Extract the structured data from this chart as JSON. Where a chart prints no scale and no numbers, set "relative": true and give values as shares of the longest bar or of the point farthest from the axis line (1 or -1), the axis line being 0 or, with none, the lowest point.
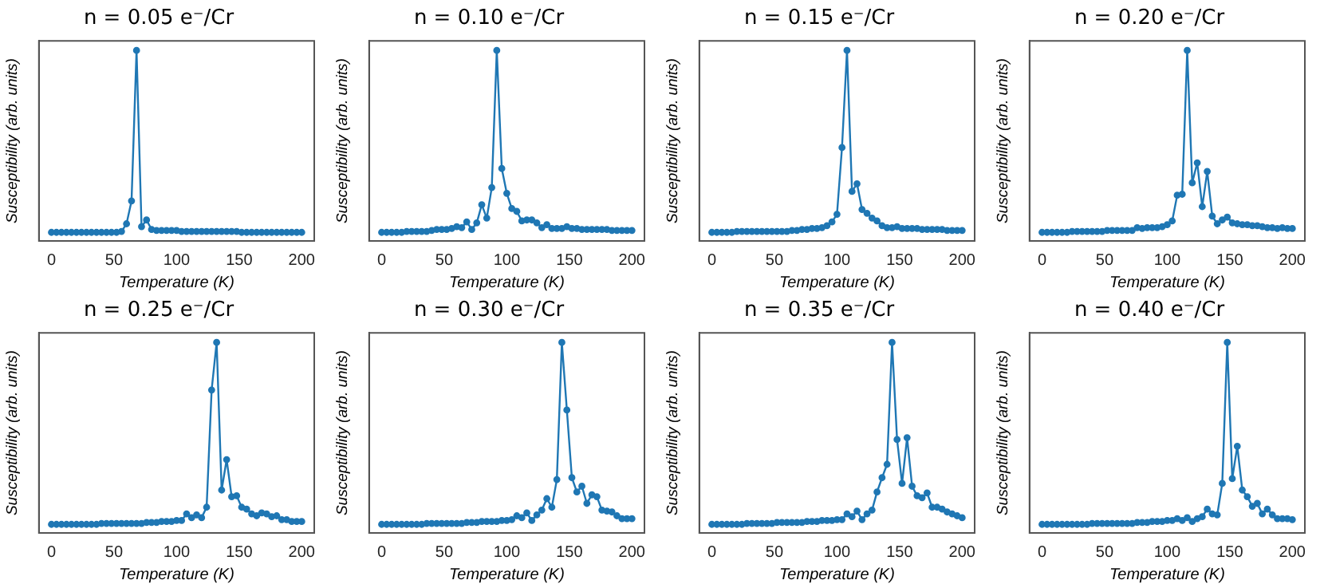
{
  "chart_data": [
    {
      "type": "line",
      "title": "n = 0.05 e⁻/Cr",
      "xlabel": "Temperature (K)",
      "ylabel": "Susceptibility (arb. units)",
      "color": "#1f77b4",
      "marker": "circle",
      "relative": true,
      "grid": false,
      "xlim": [
        -10,
        210
      ],
      "xticks": [
        0,
        50,
        100,
        150,
        200
      ],
      "x": [
        0,
        4,
        8,
        12,
        16,
        20,
        24,
        28,
        32,
        36,
        40,
        44,
        48,
        52,
        56,
        60,
        64,
        68,
        72,
        76,
        80,
        84,
        88,
        92,
        96,
        100,
        104,
        108,
        112,
        116,
        120,
        124,
        128,
        132,
        136,
        140,
        144,
        148,
        152,
        156,
        160,
        164,
        168,
        172,
        176,
        180,
        184,
        188,
        192,
        196,
        200
      ],
      "values": [
        0.045,
        0.045,
        0.045,
        0.045,
        0.045,
        0.045,
        0.045,
        0.045,
        0.045,
        0.045,
        0.045,
        0.045,
        0.045,
        0.045,
        0.05,
        0.09,
        0.21,
        1,
        0.075,
        0.11,
        0.06,
        0.055,
        0.055,
        0.055,
        0.055,
        0.055,
        0.05,
        0.05,
        0.05,
        0.05,
        0.05,
        0.05,
        0.05,
        0.05,
        0.05,
        0.05,
        0.05,
        0.05,
        0.045,
        0.045,
        0.045,
        0.045,
        0.045,
        0.045,
        0.045,
        0.045,
        0.045,
        0.045,
        0.045,
        0.045,
        0.045
      ]
    },
    {
      "type": "line",
      "title": "n = 0.10 e⁻/Cr",
      "xlabel": "Temperature (K)",
      "ylabel": "Susceptibility (arb. units)",
      "color": "#1f77b4",
      "marker": "circle",
      "relative": true,
      "grid": false,
      "xlim": [
        -10,
        210
      ],
      "xticks": [
        0,
        50,
        100,
        150,
        200
      ],
      "x": [
        0,
        4,
        8,
        12,
        16,
        20,
        24,
        28,
        32,
        36,
        40,
        44,
        48,
        52,
        56,
        60,
        64,
        68,
        72,
        76,
        80,
        84,
        88,
        92,
        96,
        100,
        104,
        108,
        112,
        116,
        120,
        124,
        128,
        132,
        136,
        140,
        144,
        148,
        152,
        156,
        160,
        164,
        168,
        172,
        176,
        180,
        184,
        188,
        192,
        196,
        200
      ],
      "values": [
        0.045,
        0.045,
        0.045,
        0.045,
        0.045,
        0.05,
        0.05,
        0.05,
        0.05,
        0.05,
        0.055,
        0.06,
        0.06,
        0.06,
        0.065,
        0.075,
        0.07,
        0.1,
        0.06,
        0.095,
        0.19,
        0.12,
        0.28,
        1,
        0.38,
        0.25,
        0.17,
        0.155,
        0.105,
        0.11,
        0.11,
        0.095,
        0.07,
        0.085,
        0.065,
        0.065,
        0.065,
        0.075,
        0.065,
        0.065,
        0.06,
        0.06,
        0.06,
        0.06,
        0.06,
        0.06,
        0.055,
        0.055,
        0.055,
        0.055,
        0.055
      ]
    },
    {
      "type": "line",
      "title": "n = 0.15 e⁻/Cr",
      "xlabel": "Temperature (K)",
      "ylabel": "Susceptibility (arb. units)",
      "color": "#1f77b4",
      "marker": "circle",
      "relative": true,
      "grid": false,
      "xlim": [
        -10,
        210
      ],
      "xticks": [
        0,
        50,
        100,
        150,
        200
      ],
      "x": [
        0,
        4,
        8,
        12,
        16,
        20,
        24,
        28,
        32,
        36,
        40,
        44,
        48,
        52,
        56,
        60,
        64,
        68,
        72,
        76,
        80,
        84,
        88,
        92,
        96,
        100,
        104,
        108,
        112,
        116,
        120,
        124,
        128,
        132,
        136,
        140,
        144,
        148,
        152,
        156,
        160,
        164,
        168,
        172,
        176,
        180,
        184,
        188,
        192,
        196,
        200
      ],
      "values": [
        0.045,
        0.045,
        0.045,
        0.045,
        0.045,
        0.05,
        0.05,
        0.05,
        0.05,
        0.05,
        0.05,
        0.05,
        0.05,
        0.05,
        0.05,
        0.05,
        0.055,
        0.055,
        0.06,
        0.06,
        0.065,
        0.065,
        0.07,
        0.08,
        0.1,
        0.14,
        0.49,
        1,
        0.26,
        0.3,
        0.165,
        0.145,
        0.12,
        0.105,
        0.08,
        0.07,
        0.07,
        0.075,
        0.065,
        0.065,
        0.065,
        0.065,
        0.06,
        0.06,
        0.06,
        0.06,
        0.06,
        0.055,
        0.055,
        0.055,
        0.055
      ]
    },
    {
      "type": "line",
      "title": "n = 0.20 e⁻/Cr",
      "xlabel": "Temperature (K)",
      "ylabel": "Susceptibility (arb. units)",
      "color": "#1f77b4",
      "marker": "circle",
      "relative": true,
      "grid": false,
      "xlim": [
        -10,
        210
      ],
      "xticks": [
        0,
        50,
        100,
        150,
        200
      ],
      "x": [
        0,
        4,
        8,
        12,
        16,
        20,
        24,
        28,
        32,
        36,
        40,
        44,
        48,
        52,
        56,
        60,
        64,
        68,
        72,
        76,
        80,
        84,
        88,
        92,
        96,
        100,
        104,
        108,
        112,
        116,
        120,
        124,
        128,
        132,
        136,
        140,
        144,
        148,
        152,
        156,
        160,
        164,
        168,
        172,
        176,
        180,
        184,
        188,
        192,
        196,
        200
      ],
      "values": [
        0.045,
        0.045,
        0.045,
        0.045,
        0.045,
        0.045,
        0.05,
        0.05,
        0.05,
        0.05,
        0.05,
        0.05,
        0.05,
        0.055,
        0.055,
        0.055,
        0.055,
        0.055,
        0.055,
        0.07,
        0.065,
        0.07,
        0.07,
        0.07,
        0.075,
        0.085,
        0.105,
        0.24,
        0.245,
        1,
        0.305,
        0.41,
        0.18,
        0.365,
        0.13,
        0.09,
        0.11,
        0.125,
        0.095,
        0.09,
        0.085,
        0.085,
        0.08,
        0.08,
        0.075,
        0.07,
        0.07,
        0.065,
        0.07,
        0.065,
        0.065
      ]
    },
    {
      "type": "line",
      "title": "n = 0.25 e⁻/Cr",
      "xlabel": "Temperature (K)",
      "ylabel": "Susceptibility (arb. units)",
      "color": "#1f77b4",
      "marker": "circle",
      "relative": true,
      "grid": false,
      "xlim": [
        -10,
        210
      ],
      "xticks": [
        0,
        50,
        100,
        150,
        200
      ],
      "x": [
        0,
        4,
        8,
        12,
        16,
        20,
        24,
        28,
        32,
        36,
        40,
        44,
        48,
        52,
        56,
        60,
        64,
        68,
        72,
        76,
        80,
        84,
        88,
        92,
        96,
        100,
        104,
        108,
        112,
        116,
        120,
        124,
        128,
        132,
        136,
        140,
        144,
        148,
        152,
        156,
        160,
        164,
        168,
        172,
        176,
        180,
        184,
        188,
        192,
        196,
        200
      ],
      "values": [
        0.045,
        0.045,
        0.045,
        0.045,
        0.045,
        0.045,
        0.045,
        0.045,
        0.045,
        0.045,
        0.05,
        0.05,
        0.05,
        0.05,
        0.05,
        0.05,
        0.05,
        0.05,
        0.05,
        0.055,
        0.055,
        0.055,
        0.06,
        0.06,
        0.06,
        0.065,
        0.065,
        0.1,
        0.08,
        0.095,
        0.08,
        0.135,
        0.75,
        1,
        0.225,
        0.385,
        0.19,
        0.195,
        0.135,
        0.125,
        0.1,
        0.09,
        0.105,
        0.1,
        0.085,
        0.09,
        0.07,
        0.07,
        0.06,
        0.06,
        0.06
      ]
    },
    {
      "type": "line",
      "title": "n = 0.30 e⁻/Cr",
      "xlabel": "Temperature (K)",
      "ylabel": "Susceptibility (arb. units)",
      "color": "#1f77b4",
      "marker": "circle",
      "relative": true,
      "grid": false,
      "xlim": [
        -10,
        210
      ],
      "xticks": [
        0,
        50,
        100,
        150,
        200
      ],
      "x": [
        0,
        4,
        8,
        12,
        16,
        20,
        24,
        28,
        32,
        36,
        40,
        44,
        48,
        52,
        56,
        60,
        64,
        68,
        72,
        76,
        80,
        84,
        88,
        92,
        96,
        100,
        104,
        108,
        112,
        116,
        120,
        124,
        128,
        132,
        136,
        140,
        144,
        148,
        152,
        156,
        160,
        164,
        168,
        172,
        176,
        180,
        184,
        188,
        192,
        196,
        200
      ],
      "values": [
        0.045,
        0.045,
        0.045,
        0.045,
        0.045,
        0.045,
        0.045,
        0.045,
        0.045,
        0.05,
        0.05,
        0.05,
        0.05,
        0.05,
        0.05,
        0.05,
        0.05,
        0.055,
        0.055,
        0.055,
        0.06,
        0.06,
        0.06,
        0.06,
        0.065,
        0.065,
        0.07,
        0.09,
        0.08,
        0.105,
        0.065,
        0.095,
        0.12,
        0.18,
        0.135,
        0.28,
        1,
        0.645,
        0.29,
        0.215,
        0.245,
        0.155,
        0.2,
        0.19,
        0.12,
        0.115,
        0.11,
        0.09,
        0.075,
        0.075,
        0.075
      ]
    },
    {
      "type": "line",
      "title": "n = 0.35 e⁻/Cr",
      "xlabel": "Temperature (K)",
      "ylabel": "Susceptibility (arb. units)",
      "color": "#1f77b4",
      "marker": "circle",
      "relative": true,
      "grid": false,
      "xlim": [
        -10,
        210
      ],
      "xticks": [
        0,
        50,
        100,
        150,
        200
      ],
      "x": [
        0,
        4,
        8,
        12,
        16,
        20,
        24,
        28,
        32,
        36,
        40,
        44,
        48,
        52,
        56,
        60,
        64,
        68,
        72,
        76,
        80,
        84,
        88,
        92,
        96,
        100,
        104,
        108,
        112,
        116,
        120,
        124,
        128,
        132,
        136,
        140,
        144,
        148,
        152,
        156,
        160,
        164,
        168,
        172,
        176,
        180,
        184,
        188,
        192,
        196,
        200
      ],
      "values": [
        0.045,
        0.045,
        0.045,
        0.045,
        0.045,
        0.045,
        0.045,
        0.05,
        0.05,
        0.05,
        0.05,
        0.05,
        0.05,
        0.055,
        0.055,
        0.055,
        0.055,
        0.055,
        0.055,
        0.06,
        0.06,
        0.06,
        0.065,
        0.065,
        0.065,
        0.07,
        0.07,
        0.1,
        0.085,
        0.115,
        0.07,
        0.1,
        0.12,
        0.215,
        0.29,
        0.36,
        1,
        0.49,
        0.26,
        0.5,
        0.245,
        0.195,
        0.185,
        0.21,
        0.135,
        0.135,
        0.125,
        0.11,
        0.1,
        0.09,
        0.08
      ]
    },
    {
      "type": "line",
      "title": "n = 0.40 e⁻/Cr",
      "xlabel": "Temperature (K)",
      "ylabel": "Susceptibility (arb. units)",
      "color": "#1f77b4",
      "marker": "circle",
      "relative": true,
      "grid": false,
      "xlim": [
        -10,
        210
      ],
      "xticks": [
        0,
        50,
        100,
        150,
        200
      ],
      "x": [
        0,
        4,
        8,
        12,
        16,
        20,
        24,
        28,
        32,
        36,
        40,
        44,
        48,
        52,
        56,
        60,
        64,
        68,
        72,
        76,
        80,
        84,
        88,
        92,
        96,
        100,
        104,
        108,
        112,
        116,
        120,
        124,
        128,
        132,
        136,
        140,
        144,
        148,
        152,
        156,
        160,
        164,
        168,
        172,
        176,
        180,
        184,
        188,
        192,
        196,
        200
      ],
      "values": [
        0.045,
        0.045,
        0.045,
        0.045,
        0.045,
        0.045,
        0.045,
        0.045,
        0.045,
        0.045,
        0.05,
        0.05,
        0.05,
        0.05,
        0.05,
        0.05,
        0.05,
        0.05,
        0.05,
        0.055,
        0.055,
        0.055,
        0.06,
        0.06,
        0.06,
        0.065,
        0.065,
        0.075,
        0.065,
        0.08,
        0.06,
        0.075,
        0.085,
        0.125,
        0.1,
        0.095,
        0.26,
        1,
        0.285,
        0.455,
        0.225,
        0.19,
        0.14,
        0.155,
        0.1,
        0.125,
        0.095,
        0.075,
        0.075,
        0.075,
        0.07
      ]
    }
  ]
}
